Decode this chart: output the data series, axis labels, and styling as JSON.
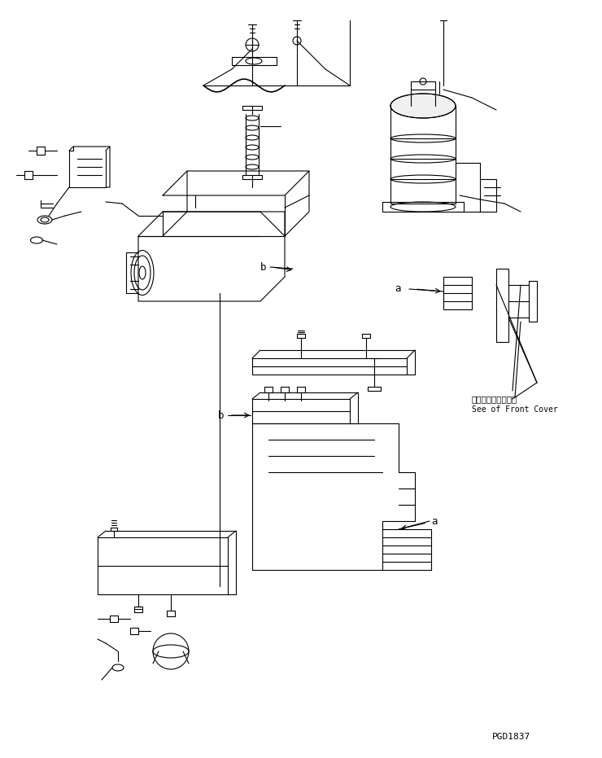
{
  "bg_color": "#ffffff",
  "line_color": "#000000",
  "fig_width": 7.4,
  "fig_height": 9.31,
  "dpi": 100,
  "part_id": "PGD1837",
  "annotation_a1": "a",
  "annotation_a2": "a",
  "annotation_b1": "b",
  "annotation_b2": "b",
  "label_front_cover_jp": "フロントカバー参照",
  "label_front_cover_en": "See of Front Cover"
}
